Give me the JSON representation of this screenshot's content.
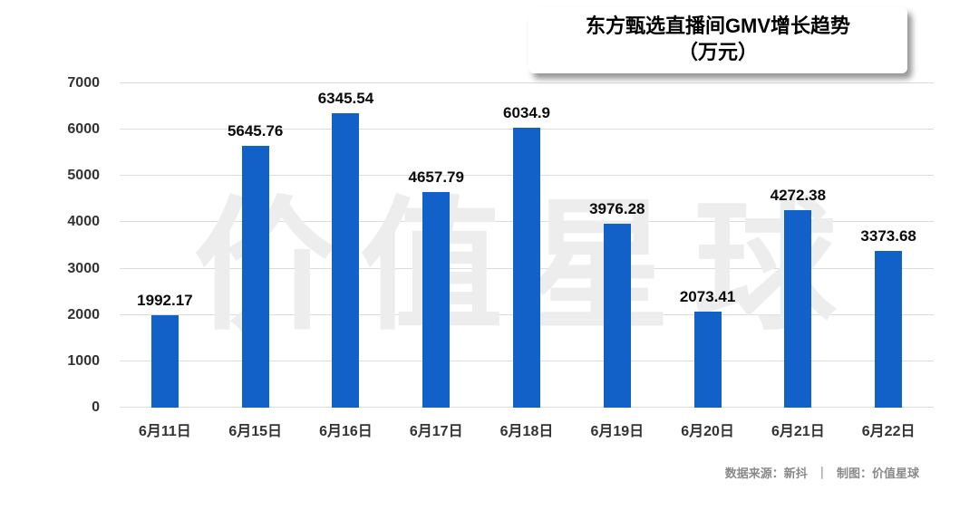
{
  "title": {
    "line1": "东方甄选直播间GMV增长趋势",
    "line2": "（万元）"
  },
  "watermark": "价值星球",
  "footer": {
    "source": "数据来源：新抖",
    "divider": "｜",
    "credit": "制图：价值星球"
  },
  "colors": {
    "bar": "#1161C8",
    "grid": "#dcdcdc",
    "watermark": "#ededed",
    "axis_text": "#333333",
    "footer_text": "#8a8a8a"
  },
  "chart_data": {
    "type": "bar",
    "title": "东方甄选直播间GMV增长趋势（万元）",
    "categories": [
      "6月11日",
      "6月15日",
      "6月16日",
      "6月17日",
      "6月18日",
      "6月19日",
      "6月20日",
      "6月21日",
      "6月22日"
    ],
    "values": [
      1992.17,
      5645.76,
      6345.54,
      4657.79,
      6034.9,
      3976.28,
      2073.41,
      4272.38,
      3373.68
    ],
    "labels": [
      "1992.17",
      "5645.76",
      "6345.54",
      "4657.79",
      "6034.9",
      "3976.28",
      "2073.41",
      "4272.38",
      "3373.68"
    ],
    "xlabel": "",
    "ylabel": "",
    "ylim": [
      0,
      7000
    ],
    "yticks": [
      0,
      1000,
      2000,
      3000,
      4000,
      5000,
      6000,
      7000
    ],
    "grid": true,
    "legend": false
  }
}
